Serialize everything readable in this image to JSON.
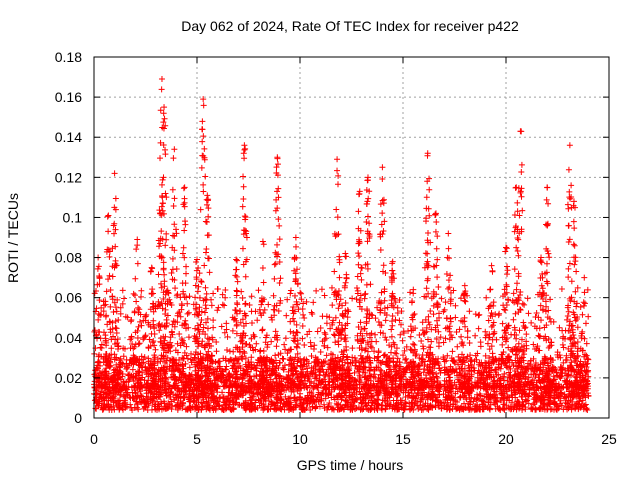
{
  "chart_data": {
    "type": "scatter",
    "title": "Day 062 of 2024, Rate Of TEC Index for receiver p422",
    "xlabel": "GPS time / hours",
    "ylabel": "ROTI / TECUs",
    "xlim": [
      0,
      25
    ],
    "ylim": [
      0,
      0.18
    ],
    "x_ticks": [
      0,
      5,
      10,
      15,
      20,
      25
    ],
    "x_tick_labels": [
      "0",
      "5",
      "10",
      "15",
      "20",
      "25"
    ],
    "y_ticks": [
      0,
      0.02,
      0.04,
      0.06,
      0.08,
      0.1,
      0.12,
      0.14,
      0.16,
      0.18
    ],
    "y_tick_labels": [
      "0",
      "0.02",
      "0.04",
      "0.06",
      "0.08",
      "0.1",
      "0.12",
      "0.14",
      "0.16",
      "0.18"
    ],
    "grid": true,
    "marker": "+",
    "series": [
      {
        "name": "ROTI",
        "color": "#ff0000",
        "x_range": [
          0,
          24
        ],
        "baseline_range": [
          0.004,
          0.03
        ],
        "peaks": [
          {
            "x": 0.2,
            "y": 0.08
          },
          {
            "x": 0.7,
            "y": 0.101
          },
          {
            "x": 1.0,
            "y": 0.122
          },
          {
            "x": 2.1,
            "y": 0.089
          },
          {
            "x": 2.8,
            "y": 0.075
          },
          {
            "x": 3.3,
            "y": 0.169
          },
          {
            "x": 3.4,
            "y": 0.155
          },
          {
            "x": 3.9,
            "y": 0.134
          },
          {
            "x": 4.4,
            "y": 0.115
          },
          {
            "x": 5.0,
            "y": 0.079
          },
          {
            "x": 5.3,
            "y": 0.159
          },
          {
            "x": 5.5,
            "y": 0.111
          },
          {
            "x": 6.9,
            "y": 0.079
          },
          {
            "x": 7.3,
            "y": 0.136
          },
          {
            "x": 8.2,
            "y": 0.088
          },
          {
            "x": 8.9,
            "y": 0.13
          },
          {
            "x": 9.8,
            "y": 0.09
          },
          {
            "x": 11.8,
            "y": 0.129
          },
          {
            "x": 12.2,
            "y": 0.082
          },
          {
            "x": 12.9,
            "y": 0.113
          },
          {
            "x": 13.3,
            "y": 0.12
          },
          {
            "x": 14.0,
            "y": 0.125
          },
          {
            "x": 14.5,
            "y": 0.078
          },
          {
            "x": 15.5,
            "y": 0.064
          },
          {
            "x": 16.2,
            "y": 0.132
          },
          {
            "x": 16.6,
            "y": 0.102
          },
          {
            "x": 17.2,
            "y": 0.092
          },
          {
            "x": 18.0,
            "y": 0.066
          },
          {
            "x": 19.3,
            "y": 0.076
          },
          {
            "x": 20.0,
            "y": 0.085
          },
          {
            "x": 20.5,
            "y": 0.115
          },
          {
            "x": 20.7,
            "y": 0.143
          },
          {
            "x": 21.7,
            "y": 0.08
          },
          {
            "x": 22.0,
            "y": 0.115
          },
          {
            "x": 23.1,
            "y": 0.136
          },
          {
            "x": 23.3,
            "y": 0.108
          },
          {
            "x": 23.8,
            "y": 0.07
          }
        ]
      }
    ]
  }
}
